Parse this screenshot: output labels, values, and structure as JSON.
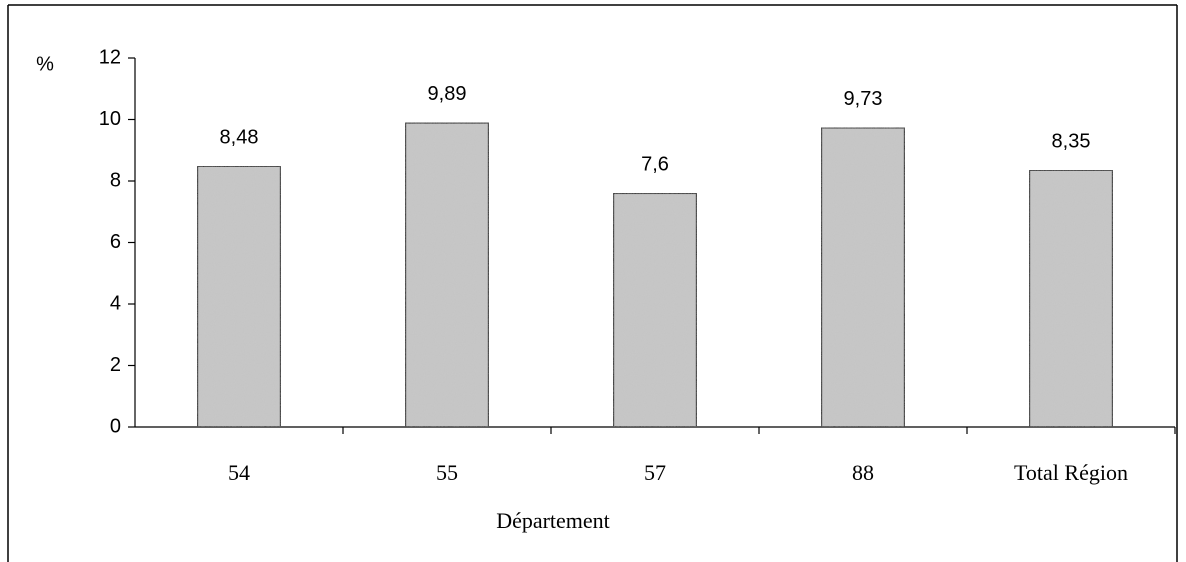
{
  "chart_data": {
    "type": "bar",
    "categories": [
      "54",
      "55",
      "57",
      "88",
      "Total Région"
    ],
    "values": [
      8.48,
      9.89,
      7.6,
      9.73,
      8.35
    ],
    "value_labels": [
      "8,48",
      "9,89",
      "7,6",
      "9,73",
      "8,35"
    ],
    "color": "#c8c8c8",
    "y_label": "%",
    "x_label": "Département",
    "ylim": [
      0,
      12
    ],
    "yticks": [
      0,
      2,
      4,
      6,
      8,
      10,
      12
    ],
    "grid": false
  }
}
